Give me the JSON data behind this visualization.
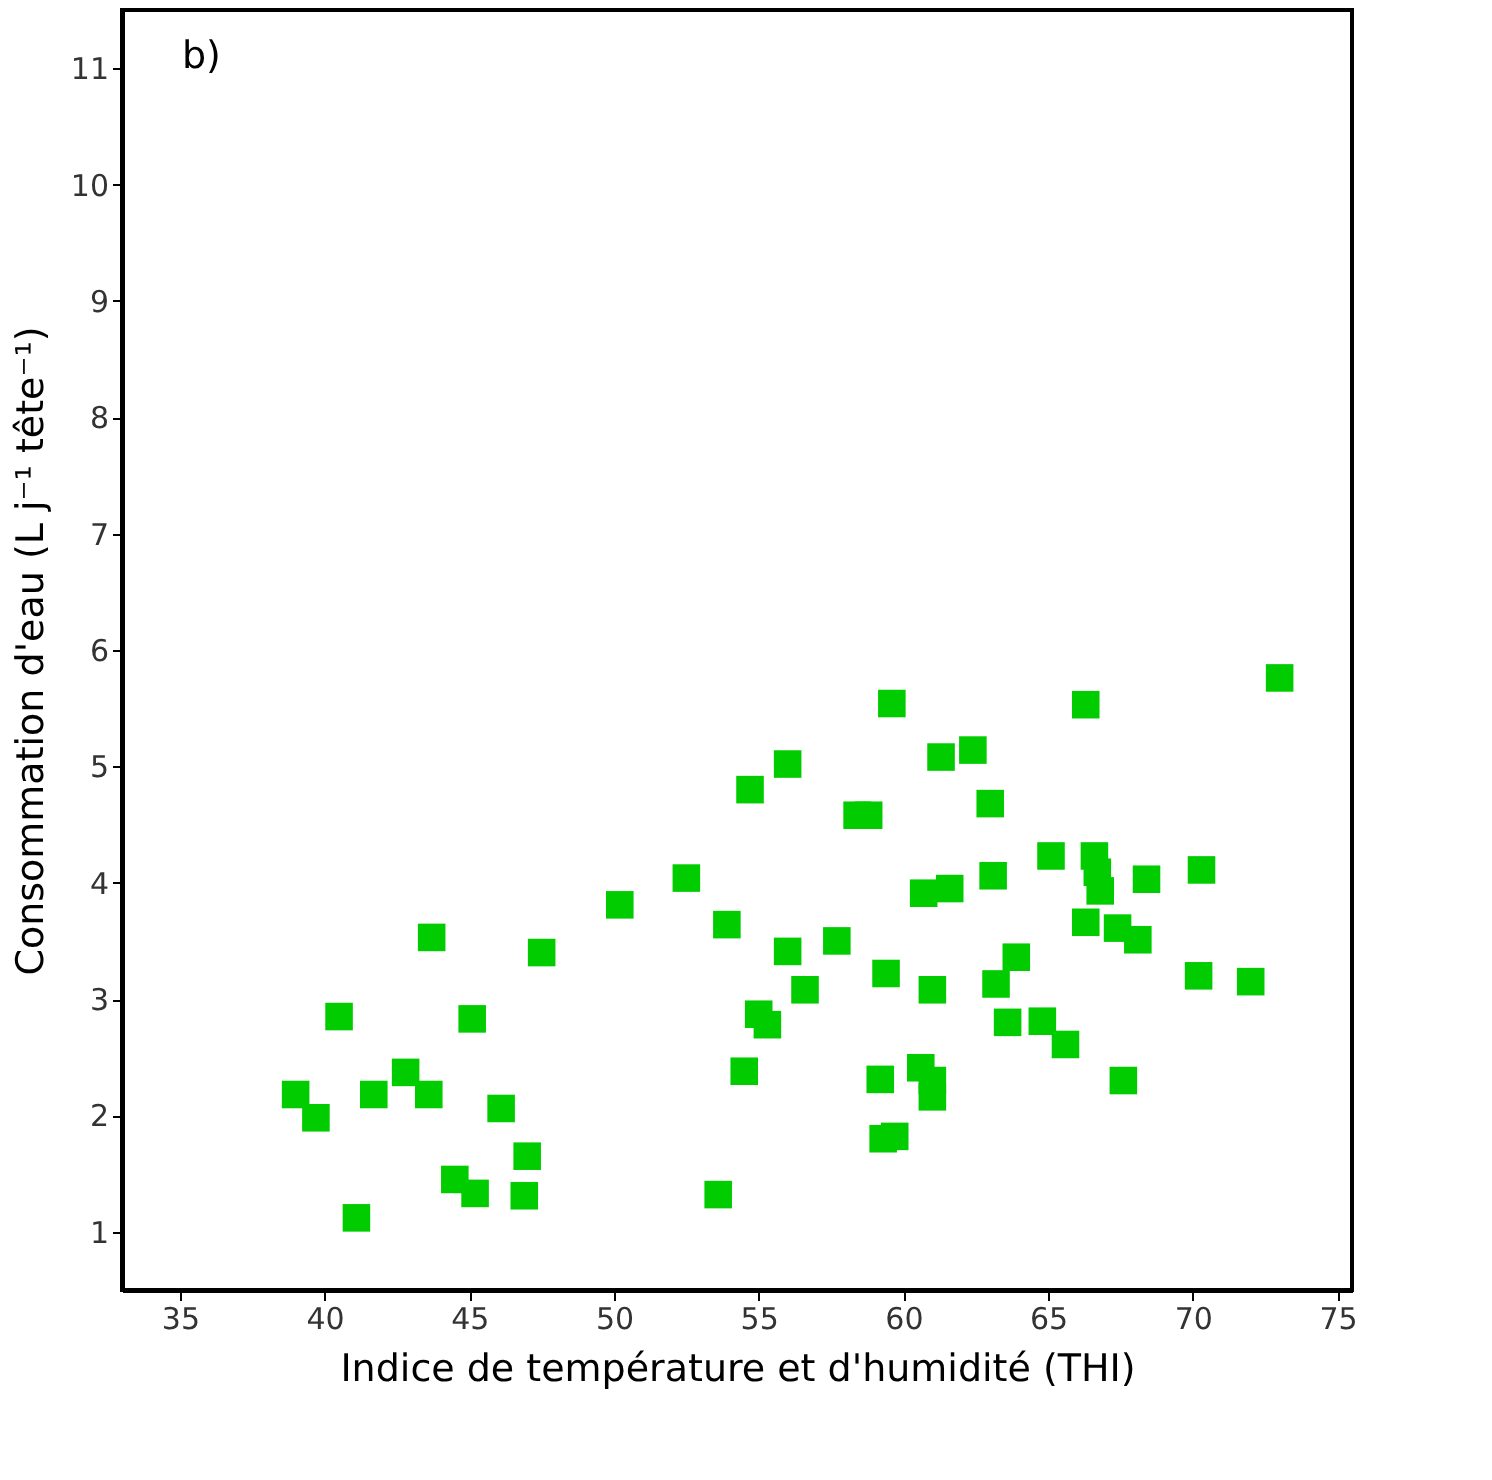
{
  "chart_data": {
    "type": "scatter",
    "xlabel": "Indice de température et d'humidité (THI)",
    "ylabel": "Consommation d'eau (L j⁻¹ tête⁻¹)",
    "annotations": [
      "b)"
    ],
    "x": [
      39.0,
      39.7,
      40.5,
      41.1,
      41.7,
      42.8,
      43.6,
      43.7,
      45.1,
      46.1,
      44.5,
      45.2,
      47.0,
      46.9,
      47.5,
      50.2,
      52.5,
      53.9,
      54.7,
      56.0,
      54.5,
      53.6,
      55.0,
      55.3,
      59.6,
      61.3,
      62.4,
      66.3,
      73.0,
      63.0,
      58.4,
      58.8,
      65.1,
      66.6,
      66.7,
      66.8,
      66.3,
      67.4,
      68.1,
      68.4,
      70.3,
      63.1,
      61.6,
      60.7,
      57.7,
      56.0,
      56.6,
      59.4,
      61.0,
      63.9,
      63.2,
      63.6,
      64.8,
      65.6,
      70.2,
      72.0,
      67.6,
      59.2,
      60.6,
      61.0,
      61.0,
      59.3,
      59.7
    ],
    "series": [
      {
        "color": "#00cc00",
        "values": [
          2.18,
          1.98,
          2.85,
          1.12,
          2.18,
          2.37,
          2.18,
          3.53,
          2.83,
          2.06,
          1.45,
          1.33,
          1.65,
          1.31,
          3.4,
          3.81,
          4.04,
          3.64,
          4.8,
          5.02,
          2.38,
          1.32,
          2.87,
          2.78,
          5.54,
          5.08,
          5.14,
          5.53,
          5.76,
          4.68,
          4.58,
          4.58,
          4.23,
          4.23,
          4.09,
          3.93,
          3.66,
          3.61,
          3.51,
          4.03,
          4.11,
          4.06,
          3.95,
          3.91,
          3.5,
          3.41,
          3.08,
          3.22,
          3.08,
          3.36,
          3.13,
          2.8,
          2.81,
          2.61,
          3.2,
          3.15,
          2.3,
          2.31,
          2.41,
          2.3,
          2.16,
          1.8,
          1.82
        ]
      }
    ],
    "xlim": [
      33,
      75.5
    ],
    "xticks": [
      35,
      40,
      45,
      50,
      55,
      60,
      65,
      70,
      75
    ],
    "ylim": [
      0.5,
      11.5
    ],
    "yticks": [
      1,
      2,
      3,
      4,
      5,
      6,
      7,
      8,
      9,
      10,
      11
    ],
    "marker": "square",
    "grid": false,
    "legend": false
  }
}
